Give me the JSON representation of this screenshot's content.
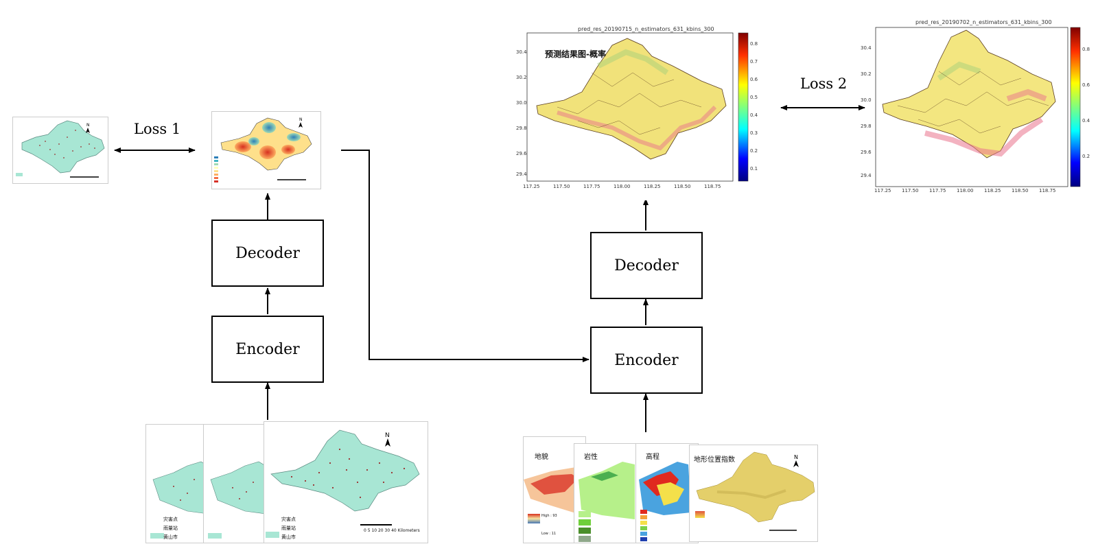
{
  "blocks": {
    "left_decoder": "Decoder",
    "left_encoder": "Encoder",
    "right_decoder": "Decoder",
    "right_encoder": "Encoder"
  },
  "losses": {
    "loss1": "Loss 1",
    "loss2": "Loss 2"
  },
  "pred_map_1": {
    "title": "pred_res_20190715_n_estimators_631_kbins_300",
    "overlay": "预测结果图-概率",
    "xticks": [
      "117.25",
      "117.50",
      "117.75",
      "118.00",
      "118.25",
      "118.50",
      "118.75"
    ],
    "yticks": [
      "30.4",
      "30.2",
      "30.0",
      "29.8",
      "29.6",
      "29.4"
    ],
    "cbar": [
      "0.8",
      "0.7",
      "0.6",
      "0.5",
      "0.4",
      "0.3",
      "0.2",
      "0.1"
    ]
  },
  "pred_map_2": {
    "title": "pred_res_20190702_n_estimators_631_kbins_300",
    "xticks": [
      "117.25",
      "117.50",
      "117.75",
      "118.00",
      "118.25",
      "118.50",
      "118.75"
    ],
    "yticks": [
      "30.4",
      "30.2",
      "30.0",
      "29.8",
      "29.6",
      "29.4"
    ],
    "cbar": [
      "0.8",
      "0.6",
      "0.4",
      "0.2"
    ]
  },
  "input_maps_left": {
    "legend": [
      "灾害点",
      "雨量站",
      "黄山市"
    ],
    "scale": "0 5 10  20  30  40",
    "scale_unit": "Kilometers"
  },
  "input_maps_right": {
    "labels": [
      "地貌",
      "岩性",
      "高程",
      "地形位置指数"
    ],
    "legend_high": "High : 93",
    "legend_low": "Low : 11"
  },
  "colors": {
    "map_teal": "#a8e6d4",
    "arrow": "#000000"
  }
}
